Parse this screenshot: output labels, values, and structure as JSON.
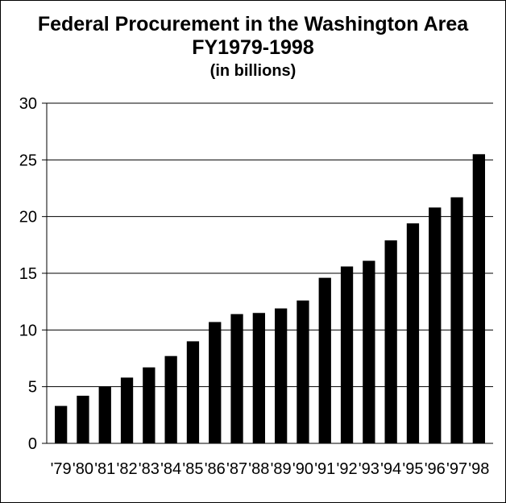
{
  "chart_data": {
    "type": "bar",
    "title_lines": [
      "Federal Procurement in the Washington Area",
      "FY1979-1998",
      "(in billions)"
    ],
    "xlabel": "",
    "ylabel": "",
    "categories": [
      "'79",
      "'80",
      "'81",
      "'82",
      "'83",
      "'84",
      "'85",
      "'86",
      "'87",
      "'88",
      "'89",
      "'90",
      "'91",
      "'92",
      "'93",
      "'94",
      "'95",
      "'96",
      "'97",
      "'98"
    ],
    "values": [
      3.3,
      4.2,
      5.0,
      5.8,
      6.7,
      7.7,
      9.0,
      10.7,
      11.4,
      11.5,
      11.9,
      12.6,
      14.6,
      15.6,
      16.1,
      17.9,
      19.4,
      20.8,
      21.7,
      25.5
    ],
    "ylim": [
      0,
      30
    ],
    "yticks": [
      0,
      5,
      10,
      15,
      20,
      25,
      30
    ],
    "grid": true,
    "bar_color": "#000000"
  }
}
